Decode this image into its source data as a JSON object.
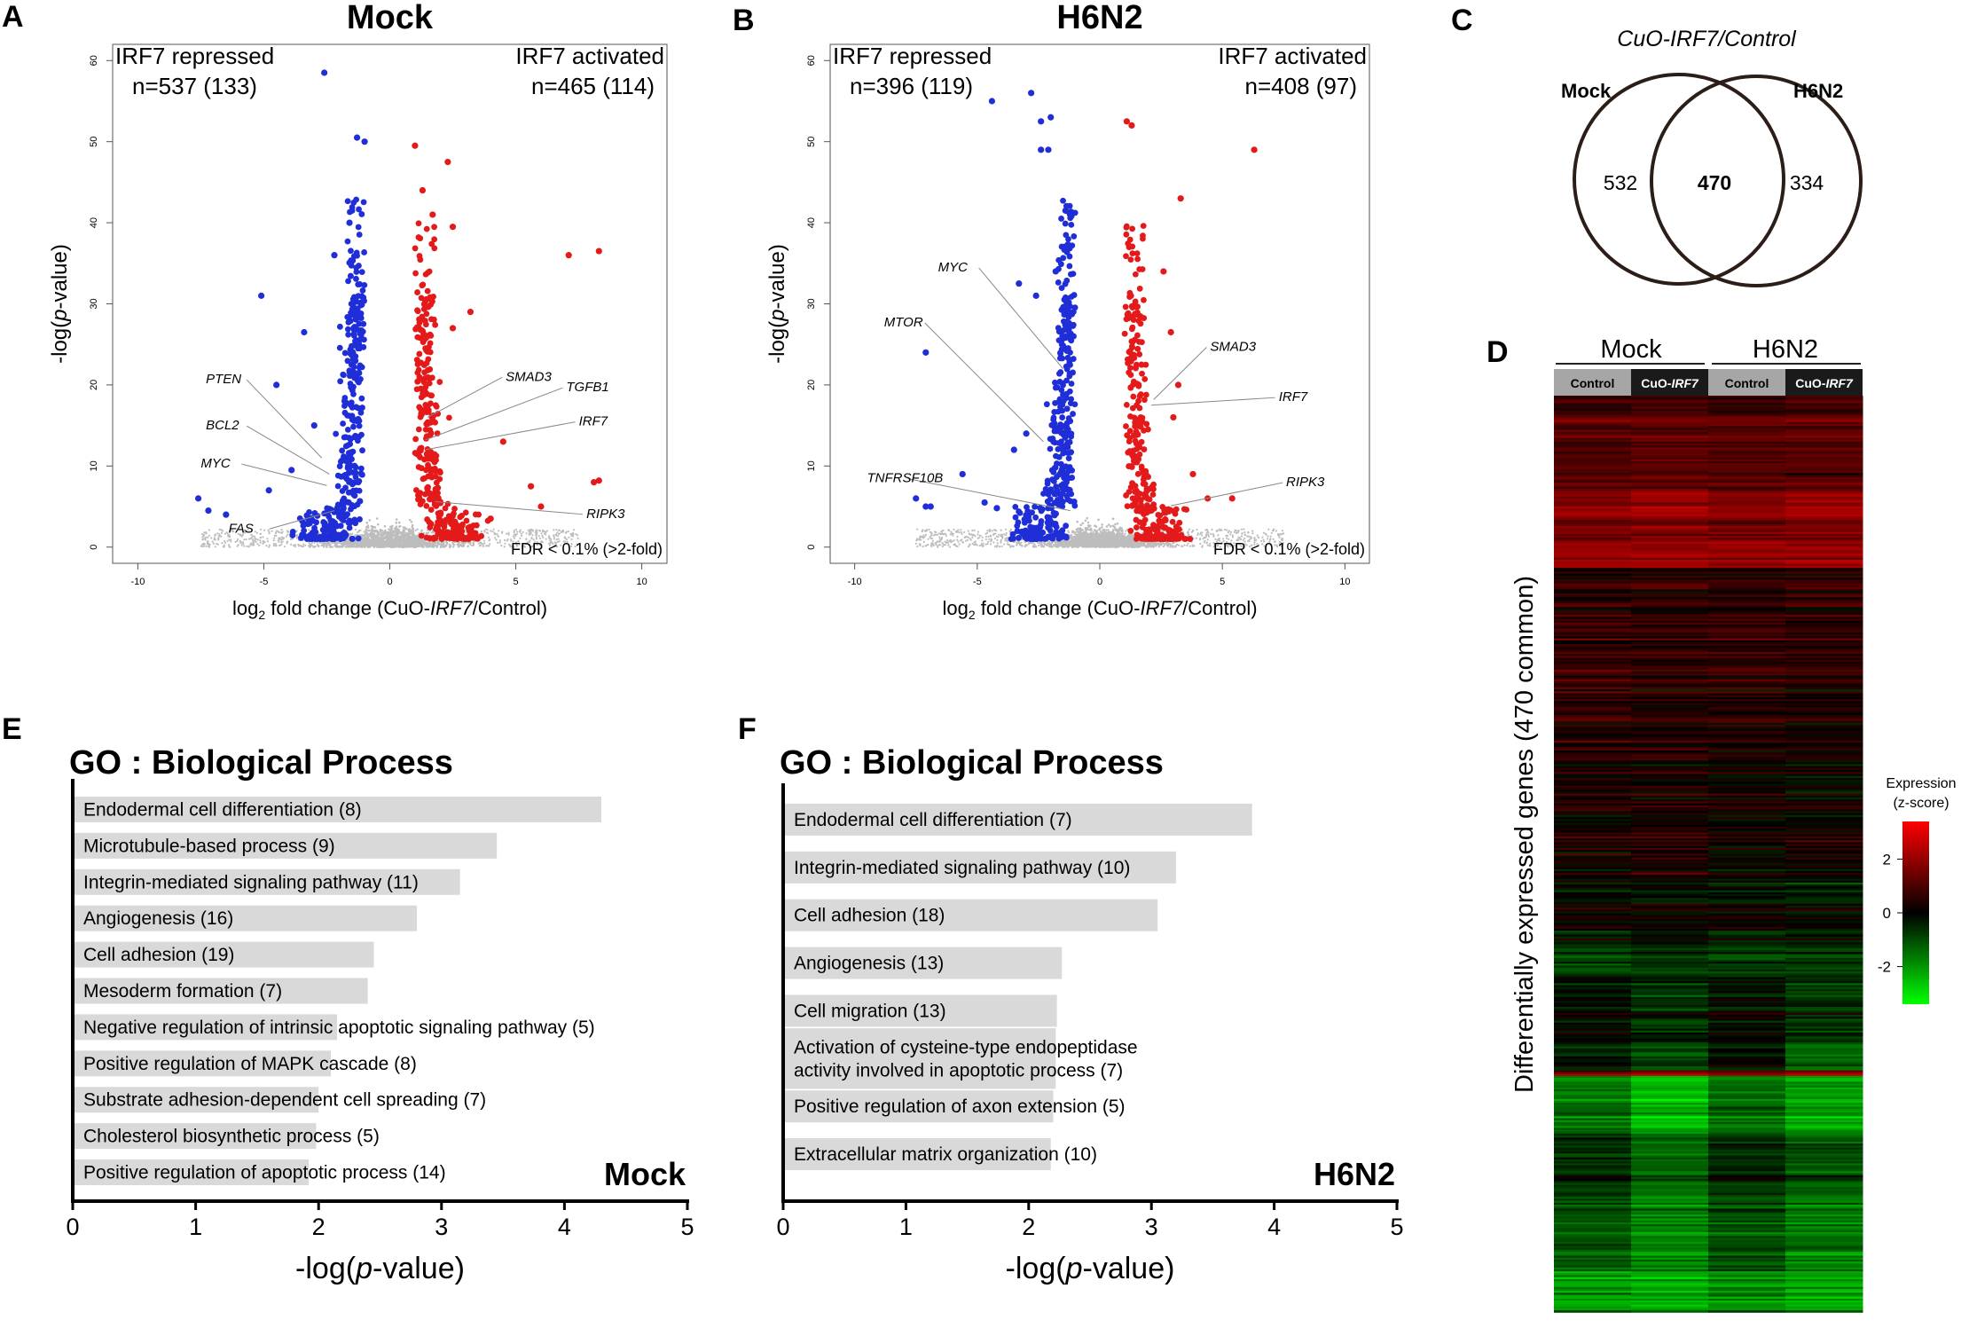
{
  "panel_labels": {
    "A": "A",
    "B": "B",
    "C": "C",
    "D": "D",
    "E": "E",
    "F": "F"
  },
  "colors": {
    "repressed": "#1f2ed6",
    "activated": "#e41a1a",
    "background_points": "#bdbdbd",
    "bar": "#d9d9d9",
    "heat_high": "#ff0000",
    "heat_mid": "#000000",
    "heat_low": "#00ff00"
  },
  "chart_data": [
    {
      "id": "volcano_mock",
      "type": "scatter",
      "title": "Mock",
      "xlabel": "log2 fold change (CuO-IRF7/Control)",
      "xlabel_parts": {
        "pre": "log",
        "sub": "2",
        "mid": " fold change (CuO-",
        "italic": "IRF7",
        "post": "/Control)"
      },
      "ylabel": "-log(p-value)",
      "ylabel_parts": {
        "pre": "-log(",
        "italic": "p",
        "post": "-value)"
      },
      "xlim": [
        -11,
        11
      ],
      "ylim": [
        -2,
        62
      ],
      "xticks": [
        -10,
        -5,
        0,
        5,
        10
      ],
      "yticks": [
        0,
        10,
        20,
        30,
        40,
        50,
        60
      ],
      "repressed_label": "IRF7 repressed",
      "repressed_n": "n=537 (133)",
      "activated_label": "IRF7 activated",
      "activated_n": "n=465 (114)",
      "fdr_note": "FDR < 0.1% (>2-fold)",
      "seed": 11,
      "outliers_blue": [
        [
          -2.6,
          58.5
        ],
        [
          -1.3,
          50.5
        ],
        [
          -1.0,
          50
        ],
        [
          -5.1,
          31
        ],
        [
          -3.4,
          26.5
        ],
        [
          -4.5,
          20
        ],
        [
          -7.6,
          6
        ],
        [
          -7.2,
          4.5
        ],
        [
          -3.9,
          9.5
        ],
        [
          -1.6,
          40
        ],
        [
          -2.2,
          36
        ],
        [
          -3.0,
          15
        ],
        [
          -6.5,
          4
        ],
        [
          -4.8,
          7
        ]
      ],
      "outliers_red": [
        [
          1.0,
          49.5
        ],
        [
          2.3,
          47.5
        ],
        [
          1.3,
          44
        ],
        [
          1.7,
          41
        ],
        [
          2.5,
          39.5
        ],
        [
          7.1,
          36
        ],
        [
          8.3,
          36.5
        ],
        [
          3.2,
          29
        ],
        [
          2.5,
          27
        ],
        [
          4.5,
          13
        ],
        [
          5.6,
          7.5
        ],
        [
          8.1,
          8
        ],
        [
          8.3,
          8.2
        ],
        [
          6.0,
          5
        ],
        [
          4.0,
          3.5
        ]
      ],
      "gene_labels": [
        {
          "name": "PTEN",
          "lx": -7.3,
          "ly": 20.2,
          "px": -2.7,
          "py": 11.0
        },
        {
          "name": "BCL2",
          "lx": -7.3,
          "ly": 14.5,
          "px": -2.4,
          "py": 9.0
        },
        {
          "name": "MYC",
          "lx": -7.5,
          "ly": 9.8,
          "px": -2.5,
          "py": 7.6
        },
        {
          "name": "FAS",
          "lx": -6.4,
          "ly": 1.8,
          "px": -2.2,
          "py": 4.5
        },
        {
          "name": "SMAD3",
          "lx": 4.6,
          "ly": 20.5,
          "px": 1.5,
          "py": 16.0
        },
        {
          "name": "TGFB1",
          "lx": 7.0,
          "ly": 19.2,
          "px": 1.4,
          "py": 13.2
        },
        {
          "name": "IRF7",
          "lx": 7.5,
          "ly": 15.0,
          "px": 1.4,
          "py": 12.0
        },
        {
          "name": "RIPK3",
          "lx": 7.8,
          "ly": 3.6,
          "px": 1.8,
          "py": 5.6
        }
      ]
    },
    {
      "id": "volcano_h6n2",
      "type": "scatter",
      "title": "H6N2",
      "xlabel": "log2 fold change (CuO-IRF7/Control)",
      "xlabel_parts": {
        "pre": "log",
        "sub": "2",
        "mid": " fold change (CuO-",
        "italic": "IRF7",
        "post": "/Control)"
      },
      "ylabel": "-log(p-value)",
      "ylabel_parts": {
        "pre": "-log(",
        "italic": "p",
        "post": "-value)"
      },
      "xlim": [
        -11,
        11
      ],
      "ylim": [
        -2,
        62
      ],
      "xticks": [
        -10,
        -5,
        0,
        5,
        10
      ],
      "yticks": [
        0,
        10,
        20,
        30,
        40,
        50,
        60
      ],
      "repressed_label": "IRF7 repressed",
      "repressed_n": "n=396 (119)",
      "activated_label": "IRF7 activated",
      "activated_n": "n=408 (97)",
      "fdr_note": "FDR < 0.1% (>2-fold)",
      "seed": 23,
      "outliers_blue": [
        [
          -4.4,
          55
        ],
        [
          -2.8,
          56
        ],
        [
          -2.0,
          53
        ],
        [
          -2.4,
          52.5
        ],
        [
          -2.4,
          49
        ],
        [
          -2.1,
          49
        ],
        [
          -1.4,
          41.5
        ],
        [
          -3.3,
          32.5
        ],
        [
          -1.8,
          34
        ],
        [
          -2.6,
          31
        ],
        [
          -7.1,
          24
        ],
        [
          -7.5,
          6
        ],
        [
          -7.1,
          5
        ],
        [
          -6.9,
          5
        ],
        [
          -5.6,
          9
        ],
        [
          -4.7,
          5.5
        ],
        [
          -4.2,
          4.8
        ],
        [
          -3.5,
          12
        ],
        [
          -3.0,
          14
        ]
      ],
      "outliers_red": [
        [
          1.1,
          52.5
        ],
        [
          1.3,
          52
        ],
        [
          6.3,
          49
        ],
        [
          3.3,
          43
        ],
        [
          1.2,
          37
        ],
        [
          2.6,
          34
        ],
        [
          2.9,
          26.5
        ],
        [
          1.7,
          22.5
        ],
        [
          3.2,
          20
        ],
        [
          3.0,
          16
        ],
        [
          3.8,
          9
        ],
        [
          4.4,
          6
        ],
        [
          5.4,
          6
        ],
        [
          1.9,
          4.5
        ]
      ],
      "gene_labels": [
        {
          "name": "MYC",
          "lx": -6.6,
          "ly": 34.0,
          "px": -1.5,
          "py": 22.0
        },
        {
          "name": "MTOR",
          "lx": -8.8,
          "ly": 27.2,
          "px": -2.3,
          "py": 13.0
        },
        {
          "name": "TNFRSF10B",
          "lx": -9.5,
          "ly": 8.0,
          "px": -1.2,
          "py": 4.5
        },
        {
          "name": "SMAD3",
          "lx": 4.5,
          "ly": 24.2,
          "px": 2.2,
          "py": 18.2
        },
        {
          "name": "IRF7",
          "lx": 7.3,
          "ly": 18.0,
          "px": 2.1,
          "py": 17.5
        },
        {
          "name": "RIPK3",
          "lx": 7.6,
          "ly": 7.5,
          "px": 2.9,
          "py": 5.1
        }
      ]
    },
    {
      "id": "venn",
      "type": "venn",
      "title": "CuO-IRF7/Control",
      "title_parts": {
        "pre": "CuO-",
        "italic": "IRF7",
        "post": "/Control"
      },
      "sets": [
        "Mock",
        "H6N2"
      ],
      "only_left": "532",
      "overlap": "470",
      "only_right": "334"
    },
    {
      "id": "heatmap",
      "type": "heatmap",
      "group_labels": [
        "Mock",
        "H6N2"
      ],
      "column_labels": [
        "Control",
        "CuO-IRF7",
        "Control",
        "CuO-IRF7"
      ],
      "column_label_parts": [
        {
          "pre": "Control",
          "italic": ""
        },
        {
          "pre": "CuO-",
          "italic": "IRF7"
        },
        {
          "pre": "Control",
          "italic": ""
        },
        {
          "pre": "CuO-",
          "italic": "IRF7"
        }
      ],
      "ylabel": "Differentially expressed genes (470 common)",
      "n_genes": 470,
      "colorbar_title_line1": "Expression",
      "colorbar_title_line2": "(z-score)",
      "colorbar_range": [
        -3.4,
        3.4
      ],
      "colorbar_ticks": [
        2,
        0,
        -2
      ],
      "colorbar_tick_labels": [
        "2",
        "0",
        "-2"
      ],
      "blocks": [
        {
          "frac": 0.02,
          "vals": [
            0.8,
            0.9,
            0.8,
            0.9
          ]
        },
        {
          "frac": 0.08,
          "vals": [
            1.1,
            1.2,
            1.1,
            1.2
          ]
        },
        {
          "frac": 0.055,
          "vals": [
            1.7,
            1.9,
            1.6,
            1.8
          ]
        },
        {
          "frac": 0.03,
          "vals": [
            2.0,
            2.0,
            2.0,
            2.0
          ]
        },
        {
          "frac": 0.04,
          "vals": [
            0.5,
            0.6,
            0.5,
            0.6
          ]
        },
        {
          "frac": 0.08,
          "vals": [
            0.7,
            0.6,
            0.7,
            0.6
          ]
        },
        {
          "frac": 0.07,
          "vals": [
            0.5,
            0.4,
            0.4,
            0.3
          ]
        },
        {
          "frac": 0.08,
          "vals": [
            0.3,
            0.3,
            0.2,
            0.1
          ]
        },
        {
          "frac": 0.06,
          "vals": [
            0.1,
            0.4,
            0.0,
            0.2
          ]
        },
        {
          "frac": 0.06,
          "vals": [
            0.0,
            0.0,
            -0.1,
            -0.2
          ]
        },
        {
          "frac": 0.05,
          "vals": [
            -0.9,
            -0.6,
            -0.8,
            -0.8
          ]
        },
        {
          "frac": 0.07,
          "vals": [
            -0.1,
            -0.5,
            -0.1,
            -0.6
          ]
        },
        {
          "frac": 0.03,
          "vals": [
            -0.2,
            -0.8,
            -0.1,
            -1.1
          ]
        },
        {
          "frac": 0.006,
          "vals": [
            1.4,
            1.6,
            1.2,
            1.6
          ]
        },
        {
          "frac": 0.06,
          "vals": [
            -1.6,
            -2.4,
            -1.5,
            -2.2
          ]
        },
        {
          "frac": 0.07,
          "vals": [
            -0.6,
            -1.4,
            -0.6,
            -1.2
          ]
        },
        {
          "frac": 0.08,
          "vals": [
            -1.2,
            -1.8,
            -1.1,
            -1.7
          ]
        },
        {
          "frac": 0.044,
          "vals": [
            -1.9,
            -2.1,
            -1.7,
            -2.1
          ]
        }
      ]
    },
    {
      "id": "go_mock",
      "type": "bar",
      "orientation": "horizontal",
      "title": "GO : Biological Process",
      "corner_label": "Mock",
      "xlabel": "-log(p-value)",
      "xlabel_parts": {
        "pre": "-log(",
        "italic": "p",
        "post": "-value)"
      },
      "xlim": [
        0,
        5
      ],
      "xticks": [
        0,
        1,
        2,
        3,
        4,
        5
      ],
      "categories": [
        [
          "Endodermal cell differentiation (8)"
        ],
        [
          "Microtubule-based process (9)"
        ],
        [
          "Integrin-mediated signaling pathway (11)"
        ],
        [
          "Angiogenesis (16)"
        ],
        [
          "Cell adhesion (19)"
        ],
        [
          "Mesoderm formation (7)"
        ],
        [
          "Negative regulation of intrinsic apoptotic signaling pathway (5)"
        ],
        [
          "Positive regulation of MAPK cascade (8)"
        ],
        [
          "Substrate adhesion-dependent cell spreading (7)"
        ],
        [
          "Cholesterol biosynthetic process (5)"
        ],
        [
          "Positive regulation of apoptotic process (14)"
        ]
      ],
      "values": [
        4.3,
        3.45,
        3.15,
        2.8,
        2.45,
        2.4,
        2.15,
        2.1,
        2.0,
        1.98,
        1.92
      ]
    },
    {
      "id": "go_h6n2",
      "type": "bar",
      "orientation": "horizontal",
      "title": "GO : Biological Process",
      "corner_label": "H6N2",
      "xlabel": "-log(p-value)",
      "xlabel_parts": {
        "pre": "-log(",
        "italic": "p",
        "post": "-value)"
      },
      "xlim": [
        0,
        5
      ],
      "xticks": [
        0,
        1,
        2,
        3,
        4,
        5
      ],
      "categories": [
        [
          "Endodermal cell differentiation (7)"
        ],
        [
          "Integrin-mediated signaling pathway (10)"
        ],
        [
          "Cell adhesion (18)"
        ],
        [
          "Angiogenesis (13)"
        ],
        [
          "Cell migration (13)"
        ],
        [
          "Activation of cysteine-type endopeptidase",
          "activity involved in apoptotic process (7)"
        ],
        [
          "Positive regulation of axon extension (5)"
        ],
        [
          "Extracellular matrix organization (10)"
        ]
      ],
      "values": [
        3.82,
        3.2,
        3.05,
        2.27,
        2.23,
        2.22,
        2.2,
        2.18
      ]
    }
  ]
}
